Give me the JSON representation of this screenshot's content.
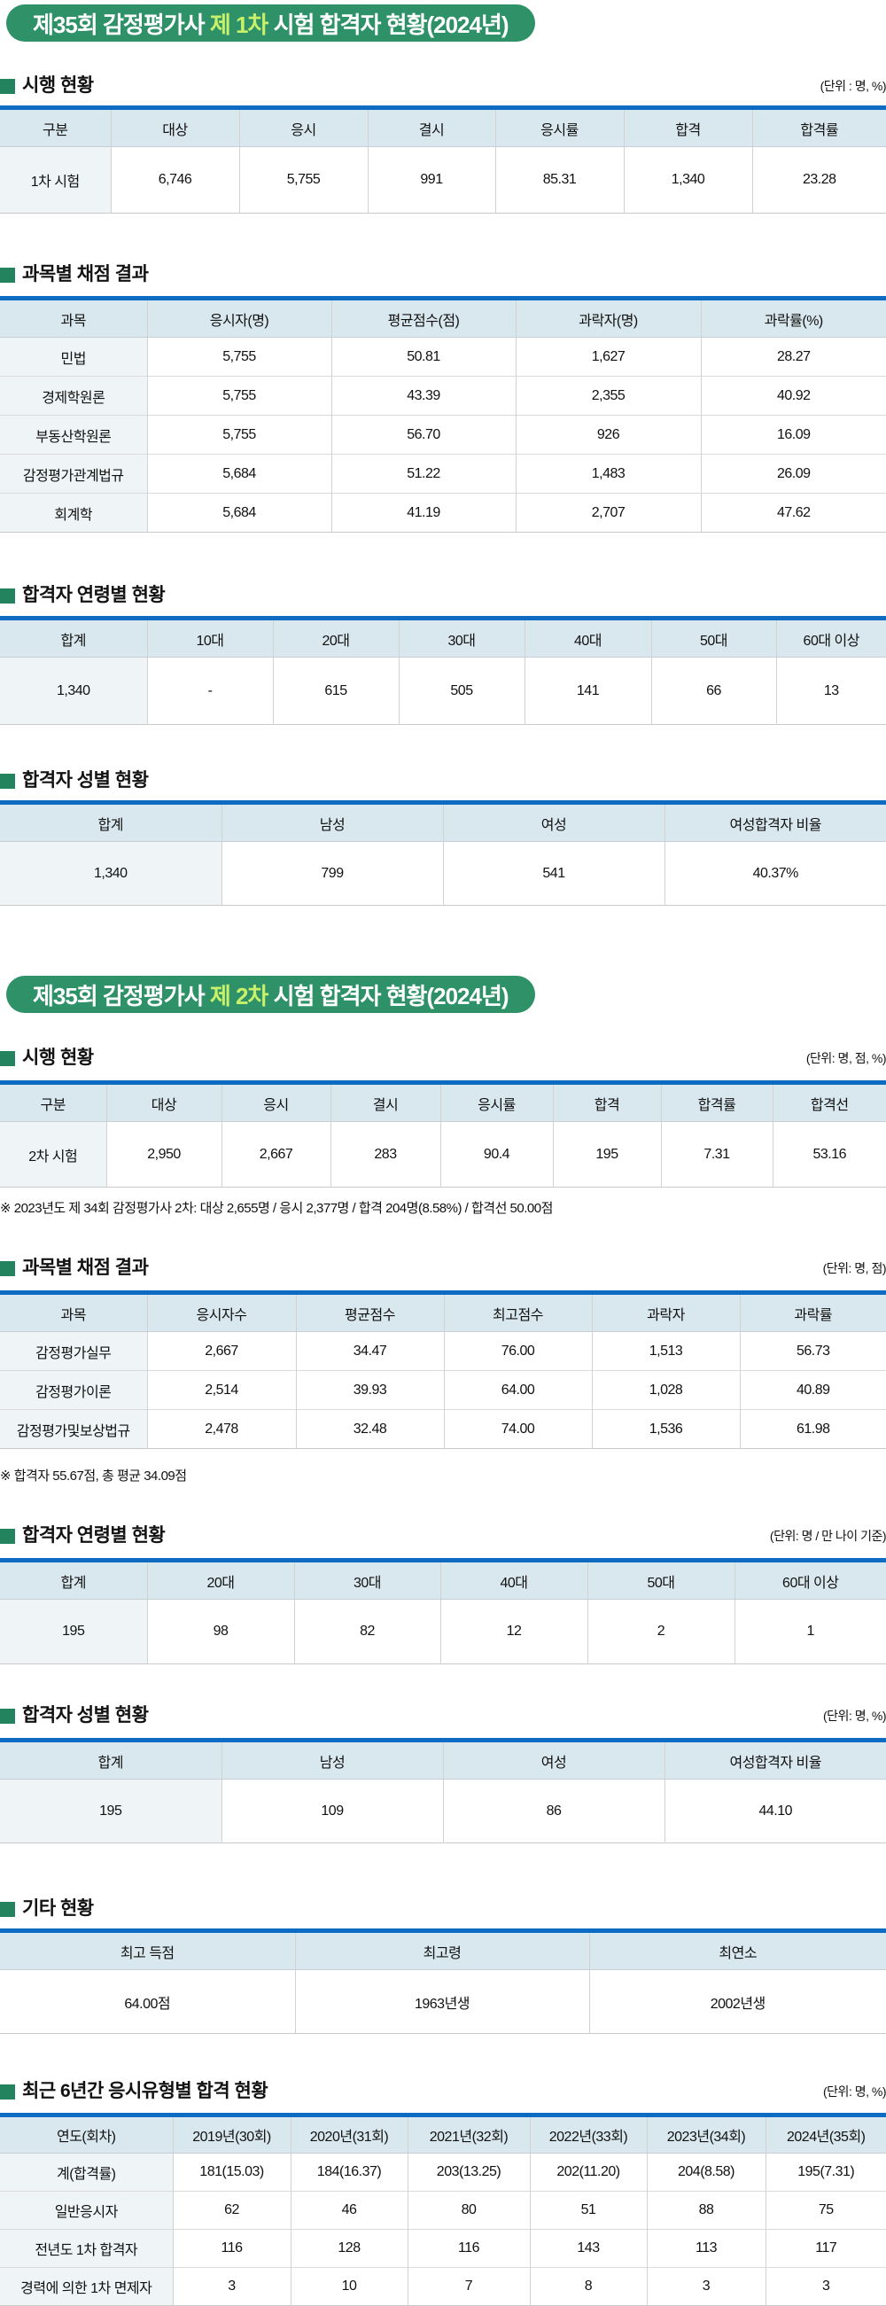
{
  "colors": {
    "badge_green": "#2E9168",
    "badge_highlight": "#C7F06B",
    "bullet_green": "#24835F",
    "table_top_border_blue": "#0D6CC2",
    "table_header_bg": "#D9E8EF",
    "first_column_bg": "#EFF5F6"
  },
  "part1": {
    "badge": {
      "prefix": "제35회 감정평가사",
      "highlight": "제 1차",
      "suffix": "시험 합격자 현황(2024년)"
    },
    "exam": {
      "title": "시행 현황",
      "unit": "(단위 : 명, %)",
      "table": {
        "headers": [
          "구분",
          "대상",
          "응시",
          "결시",
          "응시률",
          "합격",
          "합격률"
        ],
        "rows": [
          [
            "1차 시험",
            "6,746",
            "5,755",
            "991",
            "85.31",
            "1,340",
            "23.28"
          ]
        ]
      }
    },
    "subjects": {
      "title": "과목별 채점 결과",
      "table": {
        "headers": [
          "과목",
          "응시자(명)",
          "평균점수(점)",
          "과락자(명)",
          "과락률(%)"
        ],
        "rows": [
          [
            "민법",
            "5,755",
            "50.81",
            "1,627",
            "28.27"
          ],
          [
            "경제학원론",
            "5,755",
            "43.39",
            "2,355",
            "40.92"
          ],
          [
            "부동산학원론",
            "5,755",
            "56.70",
            "926",
            "16.09"
          ],
          [
            "감정평가관계법규",
            "5,684",
            "51.22",
            "1,483",
            "26.09"
          ],
          [
            "회계학",
            "5,684",
            "41.19",
            "2,707",
            "47.62"
          ]
        ]
      }
    },
    "age": {
      "title": "합격자 연령별 현황",
      "table": {
        "headers": [
          "합계",
          "10대",
          "20대",
          "30대",
          "40대",
          "50대",
          "60대 이상"
        ],
        "rows": [
          [
            "1,340",
            "-",
            "615",
            "505",
            "141",
            "66",
            "13"
          ]
        ]
      }
    },
    "gender": {
      "title": "합격자 성별 현황",
      "table": {
        "headers": [
          "합계",
          "남성",
          "여성",
          "여성합격자 비율"
        ],
        "rows": [
          [
            "1,340",
            "799",
            "541",
            "40.37%"
          ]
        ]
      }
    }
  },
  "part2": {
    "badge": {
      "prefix": "제35회 감정평가사",
      "highlight": "제 2차",
      "suffix": "시험 합격자 현황(2024년)"
    },
    "exam": {
      "title": "시행 현황",
      "unit": "(단위: 명, 점, %)",
      "note": "※ 2023년도 제 34회 감정평가사 2차: 대상 2,655명 / 응시 2,377명 / 합격 204명(8.58%) / 합격선 50.00점",
      "table": {
        "headers": [
          "구분",
          "대상",
          "응시",
          "결시",
          "응시률",
          "합격",
          "합격률",
          "합격선"
        ],
        "rows": [
          [
            "2차 시험",
            "2,950",
            "2,667",
            "283",
            "90.4",
            "195",
            "7.31",
            "53.16"
          ]
        ]
      }
    },
    "subjects": {
      "title": "과목별 채점 결과",
      "unit": "(단위: 명, 점)",
      "note": "※ 합격자 55.67점, 총 평균 34.09점",
      "table": {
        "headers": [
          "과목",
          "응시자수",
          "평균점수",
          "최고점수",
          "과락자",
          "과락률"
        ],
        "rows": [
          [
            "감정평가실무",
            "2,667",
            "34.47",
            "76.00",
            "1,513",
            "56.73"
          ],
          [
            "감정평가이론",
            "2,514",
            "39.93",
            "64.00",
            "1,028",
            "40.89"
          ],
          [
            "감정평가및보상법규",
            "2,478",
            "32.48",
            "74.00",
            "1,536",
            "61.98"
          ]
        ]
      }
    },
    "age": {
      "title": "합격자 연령별 현황",
      "unit": "(단위: 명 / 만 나이 기준)",
      "table": {
        "headers": [
          "합계",
          "20대",
          "30대",
          "40대",
          "50대",
          "60대 이상"
        ],
        "rows": [
          [
            "195",
            "98",
            "82",
            "12",
            "2",
            "1"
          ]
        ]
      }
    },
    "gender": {
      "title": "합격자 성별 현황",
      "unit": "(단위: 명, %)",
      "table": {
        "headers": [
          "합계",
          "남성",
          "여성",
          "여성합격자 비율"
        ],
        "rows": [
          [
            "195",
            "109",
            "86",
            "44.10"
          ]
        ]
      }
    },
    "etc": {
      "title": "기타 현황",
      "table": {
        "headers": [
          "최고 득점",
          "최고령",
          "최연소"
        ],
        "rows": [
          [
            "64.00점",
            "1963년생",
            "2002년생"
          ]
        ]
      }
    },
    "six_year": {
      "title": "최근 6년간 응시유형별 합격 현황",
      "unit": "(단위: 명, %)",
      "table": {
        "headers": [
          "연도(회차)",
          "2019년(30회)",
          "2020년(31회)",
          "2021년(32회)",
          "2022년(33회)",
          "2023년(34회)",
          "2024년(35회)"
        ],
        "rows": [
          [
            "계(합격률)",
            "181(15.03)",
            "184(16.37)",
            "203(13.25)",
            "202(11.20)",
            "204(8.58)",
            "195(7.31)"
          ],
          [
            "일반응시자",
            "62",
            "46",
            "80",
            "51",
            "88",
            "75"
          ],
          [
            "전년도 1차 합격자",
            "116",
            "128",
            "116",
            "143",
            "113",
            "117"
          ],
          [
            "경력에 의한 1차 면제자",
            "3",
            "10",
            "7",
            "8",
            "3",
            "3"
          ]
        ]
      }
    }
  }
}
